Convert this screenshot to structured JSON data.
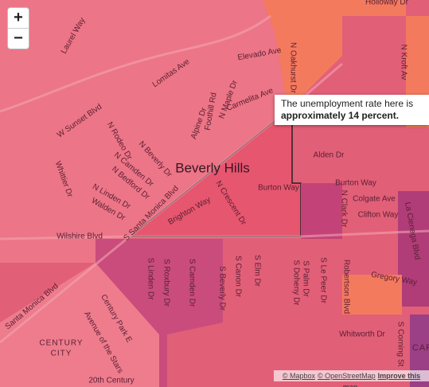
{
  "zoom": {
    "in": "+",
    "out": "−"
  },
  "labels": [
    "Laurel Way",
    "Lomitas Ave",
    "Elevado Ave",
    "N Oakhurst Dr",
    "W Sunset Blvd",
    "Foothill Rd",
    "Carmelita Ave",
    "N Maple Dr",
    "Alpine Dr",
    "N Rodeo Dr",
    "N Beverly Dr",
    "N Camden Dr",
    "N Bedford Dr",
    "Whittier Dr",
    "N Linden Dr",
    "Walden Dr",
    "Beverly Hills",
    "S Santa Monica Blvd",
    "N Crescent Dr",
    "Brighton Way",
    "Burton Way",
    "Burton Way",
    "Alden Dr",
    "Colgate Ave",
    "Clifton Way",
    "N Clark Dr",
    "La Cienega Blvd",
    "Wilshire Blvd",
    "Holloway Dr",
    "N Kroft Av",
    "S Linden Dr",
    "S Roxbury Dr",
    "S Camden Dr",
    "S Beverly Dr",
    "S Canon Dr",
    "S Elm Dr",
    "S Doheny Dr",
    "S Palm Dr",
    "S Le Peer Dr",
    "Robertson Blvd",
    "Gregory Way",
    "Whitworth Dr",
    "S Corning St",
    "Santa Monica Blvd",
    "Century Park E",
    "Avenue of the Stars",
    "CENTURY",
    "CITY",
    "20th Century",
    "CAR"
  ],
  "tooltip": {
    "line1": "The unemployment rate here is",
    "line2": "approximately 14 percent."
  },
  "attribution": {
    "mapbox": "© Mapbox",
    "osm": "© OpenStreetMap",
    "improve": "Improve this map"
  }
}
